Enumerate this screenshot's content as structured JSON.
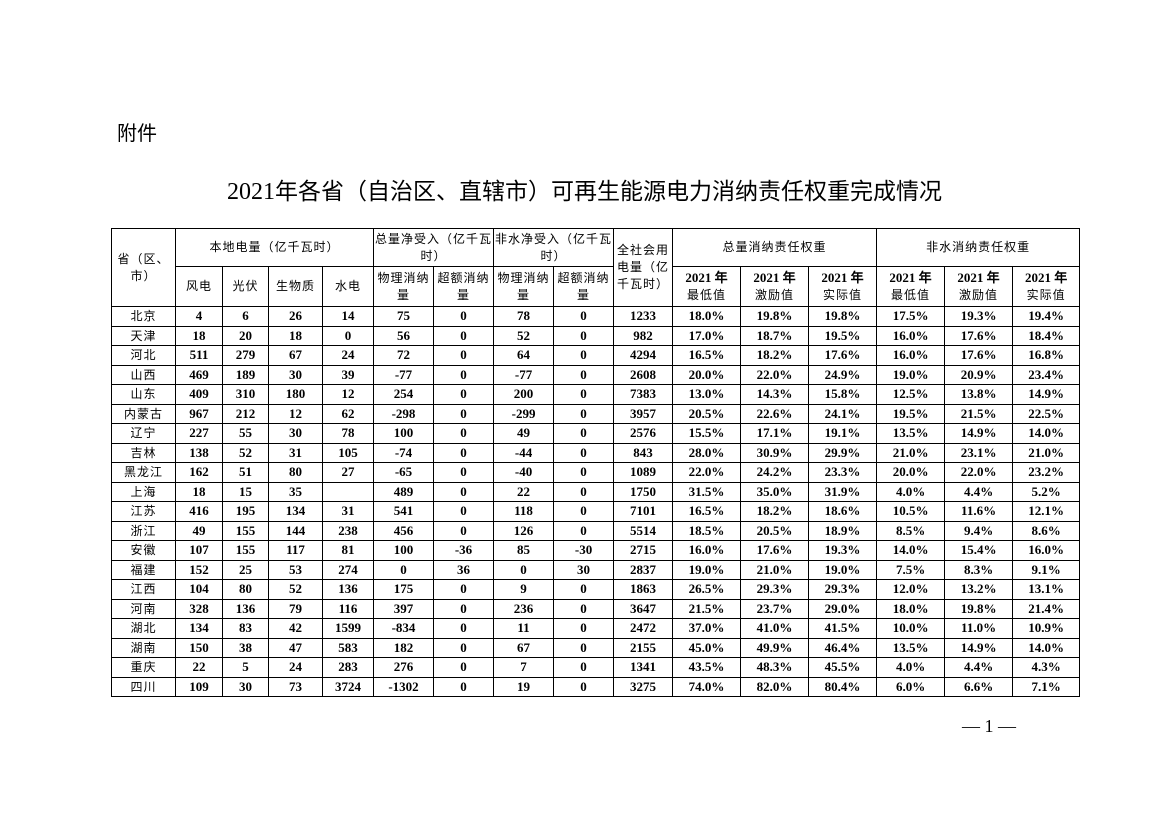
{
  "attachment_label": "附件",
  "title": {
    "year": "2021",
    "text": "年各省（自治区、直辖市）可再生能源电力消纳责任权重完成情况"
  },
  "table": {
    "header": {
      "province": "省（区、市）",
      "local_power": "本地电量（亿千瓦时）",
      "total_net_import": "总量净受入（亿千瓦时）",
      "nonhydro_net_import": "非水净受入（亿千瓦时）",
      "society_consumption": "全社会用电量（亿千瓦时）",
      "total_weight": "总量消纳责任权重",
      "nonhydro_weight": "非水消纳责任权重",
      "wind": "风电",
      "solar": "光伏",
      "biomass": "生物质",
      "hydro": "水电",
      "physical": "物理消纳量",
      "excess": "超额消纳量",
      "year_label": "2021 年",
      "min": "最低值",
      "incentive": "激励值",
      "actual": "实际值"
    },
    "rows": [
      [
        "北京",
        "4",
        "6",
        "26",
        "14",
        "75",
        "0",
        "78",
        "0",
        "1233",
        "18.0%",
        "19.8%",
        "19.8%",
        "17.5%",
        "19.3%",
        "19.4%"
      ],
      [
        "天津",
        "18",
        "20",
        "18",
        "0",
        "56",
        "0",
        "52",
        "0",
        "982",
        "17.0%",
        "18.7%",
        "19.5%",
        "16.0%",
        "17.6%",
        "18.4%"
      ],
      [
        "河北",
        "511",
        "279",
        "67",
        "24",
        "72",
        "0",
        "64",
        "0",
        "4294",
        "16.5%",
        "18.2%",
        "17.6%",
        "16.0%",
        "17.6%",
        "16.8%"
      ],
      [
        "山西",
        "469",
        "189",
        "30",
        "39",
        "-77",
        "0",
        "-77",
        "0",
        "2608",
        "20.0%",
        "22.0%",
        "24.9%",
        "19.0%",
        "20.9%",
        "23.4%"
      ],
      [
        "山东",
        "409",
        "310",
        "180",
        "12",
        "254",
        "0",
        "200",
        "0",
        "7383",
        "13.0%",
        "14.3%",
        "15.8%",
        "12.5%",
        "13.8%",
        "14.9%"
      ],
      [
        "内蒙古",
        "967",
        "212",
        "12",
        "62",
        "-298",
        "0",
        "-299",
        "0",
        "3957",
        "20.5%",
        "22.6%",
        "24.1%",
        "19.5%",
        "21.5%",
        "22.5%"
      ],
      [
        "辽宁",
        "227",
        "55",
        "30",
        "78",
        "100",
        "0",
        "49",
        "0",
        "2576",
        "15.5%",
        "17.1%",
        "19.1%",
        "13.5%",
        "14.9%",
        "14.0%"
      ],
      [
        "吉林",
        "138",
        "52",
        "31",
        "105",
        "-74",
        "0",
        "-44",
        "0",
        "843",
        "28.0%",
        "30.9%",
        "29.9%",
        "21.0%",
        "23.1%",
        "21.0%"
      ],
      [
        "黑龙江",
        "162",
        "51",
        "80",
        "27",
        "-65",
        "0",
        "-40",
        "0",
        "1089",
        "22.0%",
        "24.2%",
        "23.3%",
        "20.0%",
        "22.0%",
        "23.2%"
      ],
      [
        "上海",
        "18",
        "15",
        "35",
        "",
        "489",
        "0",
        "22",
        "0",
        "1750",
        "31.5%",
        "35.0%",
        "31.9%",
        "4.0%",
        "4.4%",
        "5.2%"
      ],
      [
        "江苏",
        "416",
        "195",
        "134",
        "31",
        "541",
        "0",
        "118",
        "0",
        "7101",
        "16.5%",
        "18.2%",
        "18.6%",
        "10.5%",
        "11.6%",
        "12.1%"
      ],
      [
        "浙江",
        "49",
        "155",
        "144",
        "238",
        "456",
        "0",
        "126",
        "0",
        "5514",
        "18.5%",
        "20.5%",
        "18.9%",
        "8.5%",
        "9.4%",
        "8.6%"
      ],
      [
        "安徽",
        "107",
        "155",
        "117",
        "81",
        "100",
        "-36",
        "85",
        "-30",
        "2715",
        "16.0%",
        "17.6%",
        "19.3%",
        "14.0%",
        "15.4%",
        "16.0%"
      ],
      [
        "福建",
        "152",
        "25",
        "53",
        "274",
        "0",
        "36",
        "0",
        "30",
        "2837",
        "19.0%",
        "21.0%",
        "19.0%",
        "7.5%",
        "8.3%",
        "9.1%"
      ],
      [
        "江西",
        "104",
        "80",
        "52",
        "136",
        "175",
        "0",
        "9",
        "0",
        "1863",
        "26.5%",
        "29.3%",
        "29.3%",
        "12.0%",
        "13.2%",
        "13.1%"
      ],
      [
        "河南",
        "328",
        "136",
        "79",
        "116",
        "397",
        "0",
        "236",
        "0",
        "3647",
        "21.5%",
        "23.7%",
        "29.0%",
        "18.0%",
        "19.8%",
        "21.4%"
      ],
      [
        "湖北",
        "134",
        "83",
        "42",
        "1599",
        "-834",
        "0",
        "11",
        "0",
        "2472",
        "37.0%",
        "41.0%",
        "41.5%",
        "10.0%",
        "11.0%",
        "10.9%"
      ],
      [
        "湖南",
        "150",
        "38",
        "47",
        "583",
        "182",
        "0",
        "67",
        "0",
        "2155",
        "45.0%",
        "49.9%",
        "46.4%",
        "13.5%",
        "14.9%",
        "14.0%"
      ],
      [
        "重庆",
        "22",
        "5",
        "24",
        "283",
        "276",
        "0",
        "7",
        "0",
        "1341",
        "43.5%",
        "48.3%",
        "45.5%",
        "4.0%",
        "4.4%",
        "4.3%"
      ],
      [
        "四川",
        "109",
        "30",
        "73",
        "3724",
        "-1302",
        "0",
        "19",
        "0",
        "3275",
        "74.0%",
        "82.0%",
        "80.4%",
        "6.0%",
        "6.6%",
        "7.1%"
      ]
    ]
  },
  "page_number": "— 1 —"
}
